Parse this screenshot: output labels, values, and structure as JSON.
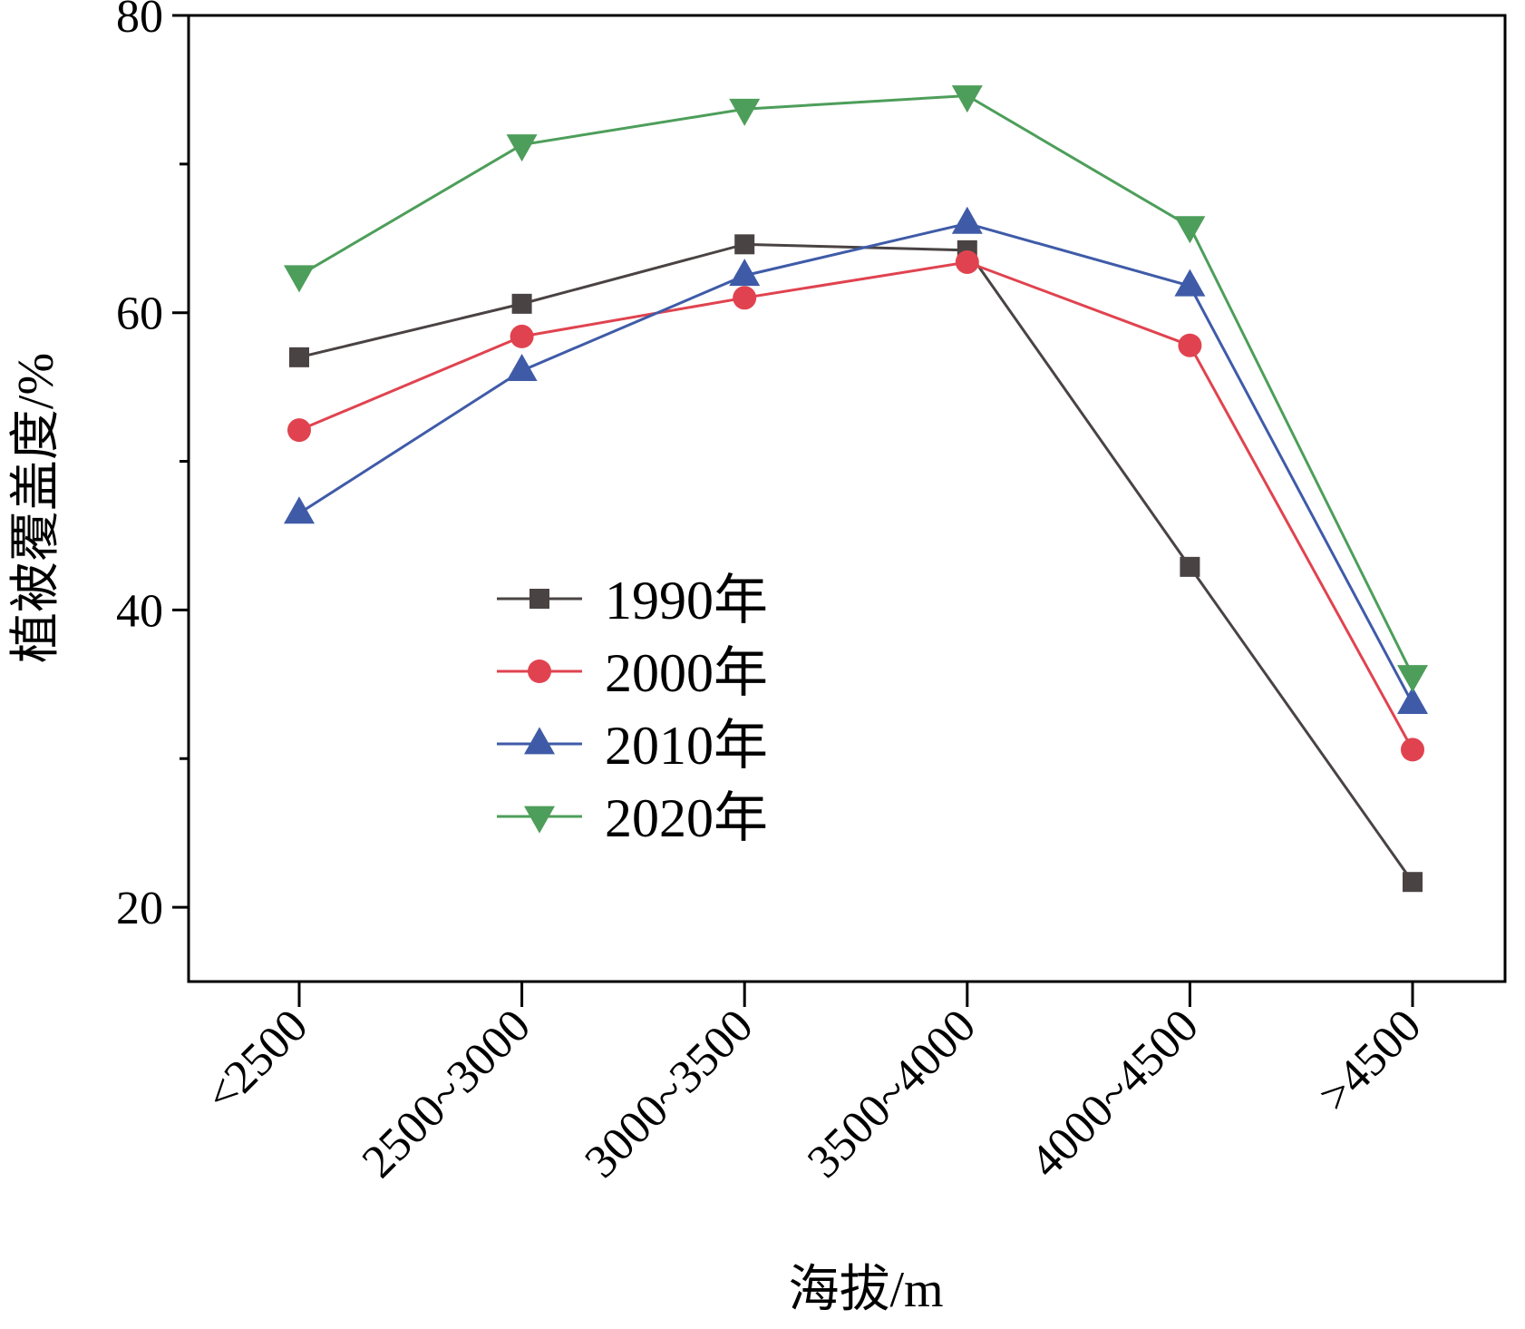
{
  "chart_data": {
    "type": "line",
    "title": "",
    "xlabel": "海拔/m",
    "ylabel": "植被覆盖度/%",
    "categories": [
      "<2500",
      "2500~3000",
      "3000~3500",
      "3500~4000",
      "4000~4500",
      ">4500"
    ],
    "ylim": [
      15,
      80
    ],
    "yticks": [
      20,
      40,
      60,
      80
    ],
    "ytick_labels": [
      "20",
      "40",
      "60",
      "80"
    ],
    "y_minor_ticks": [
      30,
      50,
      70
    ],
    "grid": false,
    "legend_position": "center-left",
    "series": [
      {
        "name": "1990年",
        "marker": "square",
        "color": "#4a4343",
        "values": [
          57.0,
          60.6,
          64.6,
          64.2,
          42.9,
          21.7
        ]
      },
      {
        "name": "2000年",
        "marker": "circle",
        "color": "#e0434f",
        "values": [
          52.1,
          58.4,
          61.0,
          63.4,
          57.8,
          30.6
        ]
      },
      {
        "name": "2010年",
        "marker": "triangle-up",
        "color": "#3f5ba8",
        "values": [
          46.5,
          56.1,
          62.5,
          66.0,
          61.8,
          33.7
        ]
      },
      {
        "name": "2020年",
        "marker": "triangle-down",
        "color": "#4d9e5a",
        "values": [
          62.5,
          71.3,
          73.7,
          74.6,
          65.8,
          35.6
        ]
      }
    ]
  }
}
